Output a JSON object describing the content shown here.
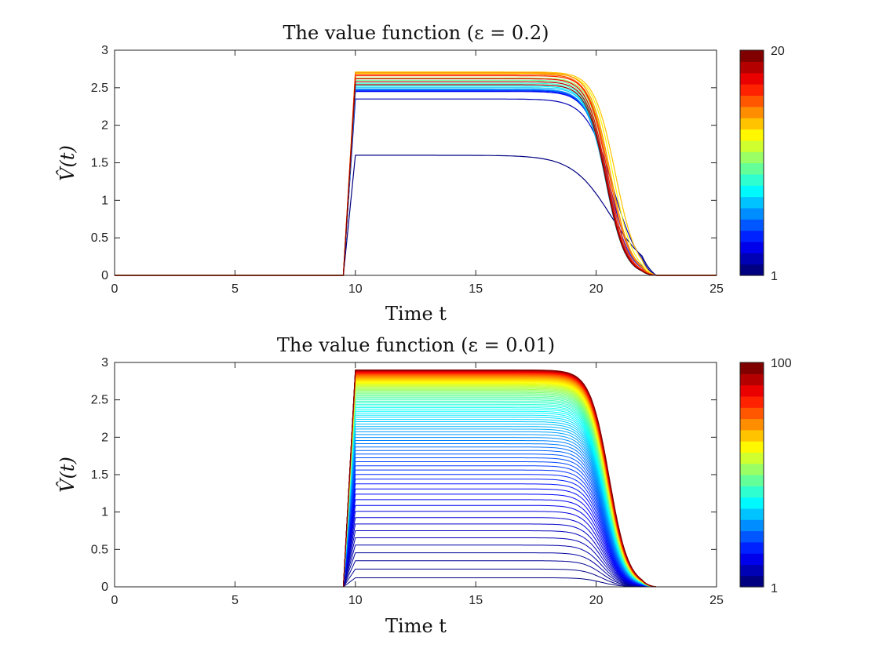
{
  "chart_data": [
    {
      "type": "line",
      "title": "The value function (ε = 0.2)",
      "xlabel": "Time t",
      "ylabel": "V̂(t)",
      "xlim": [
        0,
        25
      ],
      "ylim": [
        0,
        3
      ],
      "xticks": [
        0,
        5,
        10,
        15,
        20,
        25
      ],
      "yticks": [
        0,
        0.5,
        1,
        1.5,
        2,
        2.5,
        3
      ],
      "grid": false,
      "colormap": "jet",
      "colorbar": {
        "min": 1,
        "max": 20,
        "levels": 20,
        "tick_labels": [
          "1",
          "20"
        ]
      },
      "series_count": 20,
      "rise_start": 9.5,
      "rise_end": 10,
      "end_time": 22.5,
      "plateaus": [
        1.6,
        2.35,
        2.45,
        2.46,
        2.47,
        2.48,
        2.5,
        2.52,
        2.56,
        2.6,
        2.63,
        2.66,
        2.69,
        2.71,
        2.7,
        2.68,
        2.66,
        2.62,
        2.58,
        2.54
      ],
      "drop_centers": [
        20.6,
        20.7,
        20.55,
        20.5,
        20.45,
        20.42,
        20.4,
        20.4,
        20.42,
        20.45,
        20.5,
        20.6,
        20.7,
        20.8,
        20.6,
        20.55,
        20.5,
        20.45,
        20.42,
        20.4
      ],
      "drop_widths": [
        1.9,
        1.3,
        1.1,
        1.05,
        1.0,
        1.0,
        0.95,
        0.95,
        0.95,
        0.95,
        0.95,
        1.0,
        1.0,
        1.05,
        1.0,
        1.0,
        0.95,
        0.95,
        0.95,
        0.95
      ]
    },
    {
      "type": "line",
      "title": "The value function (ε = 0.01)",
      "xlabel": "Time t",
      "ylabel": "V̂(t)",
      "xlim": [
        0,
        25
      ],
      "ylim": [
        0,
        3
      ],
      "xticks": [
        0,
        5,
        10,
        15,
        20,
        25
      ],
      "yticks": [
        0,
        0.5,
        1,
        1.5,
        2,
        2.5,
        3
      ],
      "grid": false,
      "colormap": "jet",
      "colorbar": {
        "min": 1,
        "max": 100,
        "levels": 20,
        "tick_labels": [
          "1",
          "100"
        ]
      },
      "series_count": 100,
      "rise_start": 9.5,
      "rise_end": 10,
      "end_time": 22.5,
      "plateau_max": 2.9,
      "drop_center_low": 20.2,
      "drop_center_high": 20.55,
      "drop_width": 0.95
    }
  ]
}
